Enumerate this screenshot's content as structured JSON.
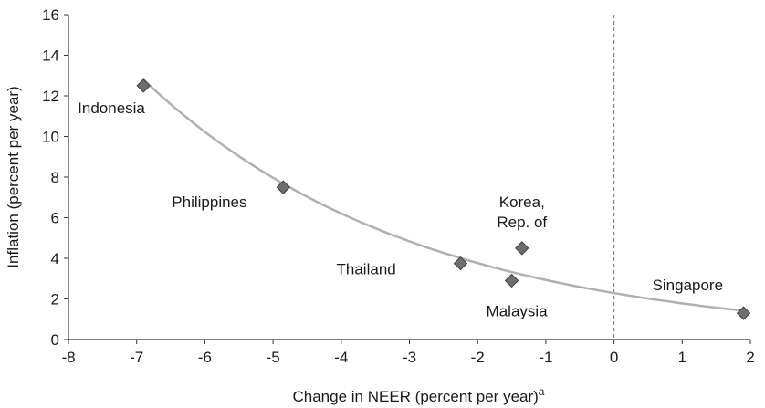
{
  "chart_data": {
    "type": "scatter",
    "title": "",
    "xlabel": "Change in NEER (percent per year)",
    "xlabel_superscript": "a",
    "ylabel": "Inflation (percent per year)",
    "xlim": [
      -8,
      2
    ],
    "ylim": [
      0,
      16
    ],
    "xticks": [
      -8,
      -7,
      -6,
      -5,
      -4,
      -3,
      -2,
      -1,
      0,
      1,
      2
    ],
    "yticks": [
      0,
      2,
      4,
      6,
      8,
      10,
      12,
      14,
      16
    ],
    "grid": false,
    "legend": "none",
    "reference_line": {
      "x": 0,
      "style": "dashed"
    },
    "trendline": {
      "type": "exponential",
      "color": "#b0b0b0"
    },
    "marker": {
      "shape": "diamond",
      "color": "#6e6e6e"
    },
    "points": [
      {
        "label": "Indonesia",
        "label_lines": [
          "Indonesia"
        ],
        "x": -6.9,
        "y": 12.5
      },
      {
        "label": "Philippines",
        "label_lines": [
          "Philippines"
        ],
        "x": -4.85,
        "y": 7.5
      },
      {
        "label": "Korea, Rep. of",
        "label_lines": [
          "Korea,",
          "Rep. of"
        ],
        "x": -1.35,
        "y": 4.5
      },
      {
        "label": "Thailand",
        "label_lines": [
          "Thailand"
        ],
        "x": -2.25,
        "y": 3.75
      },
      {
        "label": "Malaysia",
        "label_lines": [
          "Malaysia"
        ],
        "x": -1.5,
        "y": 2.9
      },
      {
        "label": "Singapore",
        "label_lines": [
          "Singapore"
        ],
        "x": 1.9,
        "y": 1.3
      }
    ]
  }
}
